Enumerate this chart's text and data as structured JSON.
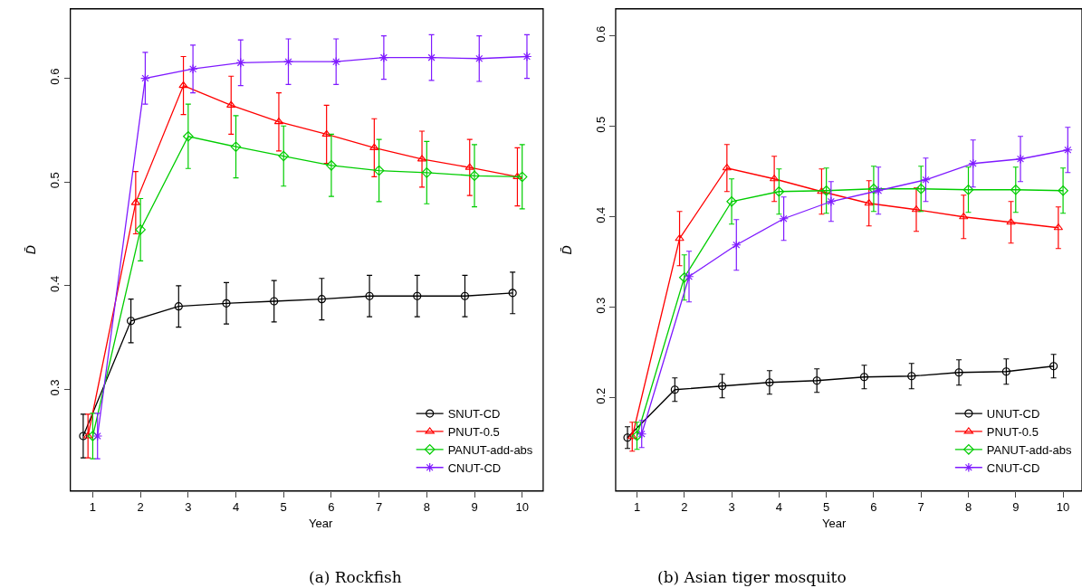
{
  "chart_data": [
    {
      "type": "line",
      "title": "(a) Rockfish",
      "xlabel": "Year",
      "ylabel": "D̄",
      "xlim": [
        0.53,
        10.44
      ],
      "ylim": [
        0.202,
        0.667
      ],
      "xticks": [
        1,
        2,
        3,
        4,
        5,
        6,
        7,
        8,
        9,
        10
      ],
      "yticks": [
        0.3,
        0.4,
        0.5,
        0.6
      ],
      "legend": "bottom right",
      "line_style": "solid",
      "series": [
        {
          "name": "SNUT-CD",
          "color": "#000000",
          "marker": "circle",
          "x": [
            0.8,
            1.8,
            2.8,
            3.8,
            4.8,
            5.8,
            6.8,
            7.8,
            8.8,
            9.8
          ],
          "values": [
            0.255,
            0.366,
            0.38,
            0.383,
            0.385,
            0.387,
            0.39,
            0.39,
            0.39,
            0.393
          ],
          "errors": [
            0.021,
            0.021,
            0.02,
            0.02,
            0.02,
            0.02,
            0.02,
            0.02,
            0.02,
            0.02
          ]
        },
        {
          "name": "PNUT-0.5",
          "color": "#ff0000",
          "marker": "triangle",
          "x": [
            0.9,
            1.9,
            2.9,
            3.9,
            4.9,
            5.9,
            6.9,
            7.9,
            8.9,
            9.9
          ],
          "values": [
            0.255,
            0.48,
            0.593,
            0.574,
            0.558,
            0.546,
            0.533,
            0.522,
            0.514,
            0.505
          ],
          "errors": [
            0.021,
            0.03,
            0.028,
            0.028,
            0.028,
            0.028,
            0.028,
            0.027,
            0.027,
            0.028
          ]
        },
        {
          "name": "PANUT-add-abs",
          "color": "#00cd00",
          "marker": "diamond",
          "x": [
            1.0,
            2.0,
            3.0,
            4.0,
            5.0,
            6.0,
            7.0,
            8.0,
            9.0,
            10.0
          ],
          "values": [
            0.255,
            0.454,
            0.544,
            0.534,
            0.525,
            0.516,
            0.511,
            0.509,
            0.506,
            0.505
          ],
          "errors": [
            0.022,
            0.03,
            0.031,
            0.03,
            0.029,
            0.03,
            0.03,
            0.03,
            0.03,
            0.031
          ]
        },
        {
          "name": "CNUT-CD",
          "color": "#7f1aff",
          "marker": "cross",
          "x": [
            1.1,
            2.1,
            3.1,
            4.1,
            5.1,
            6.1,
            7.1,
            8.1,
            9.1,
            10.1
          ],
          "values": [
            0.255,
            0.6,
            0.609,
            0.615,
            0.616,
            0.616,
            0.62,
            0.62,
            0.619,
            0.621
          ],
          "errors": [
            0.022,
            0.025,
            0.023,
            0.022,
            0.022,
            0.022,
            0.021,
            0.022,
            0.022,
            0.021
          ]
        }
      ]
    },
    {
      "type": "line",
      "title": "(b) Asian tiger mosquito",
      "xlabel": "Year",
      "ylabel": "D̄",
      "xlim": [
        0.55,
        10.4
      ],
      "ylim": [
        0.097,
        0.63
      ],
      "xticks": [
        1,
        2,
        3,
        4,
        5,
        6,
        7,
        8,
        9,
        10
      ],
      "yticks": [
        0.2,
        0.3,
        0.4,
        0.5,
        0.6
      ],
      "legend": "bottom right",
      "line_style": "solid",
      "series": [
        {
          "name": "UNUT-CD",
          "color": "#000000",
          "marker": "circle",
          "x": [
            0.8,
            1.8,
            2.8,
            3.8,
            4.8,
            5.8,
            6.8,
            7.8,
            8.8,
            9.8
          ],
          "values": [
            0.156,
            0.209,
            0.213,
            0.217,
            0.219,
            0.223,
            0.224,
            0.228,
            0.229,
            0.235
          ],
          "errors": [
            0.012,
            0.013,
            0.013,
            0.013,
            0.013,
            0.013,
            0.014,
            0.014,
            0.014,
            0.013
          ]
        },
        {
          "name": "PNUT-0.5",
          "color": "#ff0000",
          "marker": "triangle",
          "x": [
            0.9,
            1.9,
            2.9,
            3.9,
            4.9,
            5.9,
            6.9,
            7.9,
            8.9,
            9.9
          ],
          "values": [
            0.157,
            0.376,
            0.454,
            0.442,
            0.428,
            0.415,
            0.408,
            0.4,
            0.394,
            0.388
          ],
          "errors": [
            0.016,
            0.03,
            0.026,
            0.025,
            0.025,
            0.025,
            0.024,
            0.024,
            0.023,
            0.023
          ]
        },
        {
          "name": "PANUT-add-abs",
          "color": "#00cd00",
          "marker": "diamond",
          "x": [
            1.0,
            2.0,
            3.0,
            4.0,
            5.0,
            6.0,
            7.0,
            8.0,
            9.0,
            10.0
          ],
          "values": [
            0.158,
            0.333,
            0.417,
            0.428,
            0.429,
            0.431,
            0.431,
            0.43,
            0.43,
            0.429
          ],
          "errors": [
            0.015,
            0.025,
            0.025,
            0.025,
            0.025,
            0.025,
            0.025,
            0.025,
            0.025,
            0.025
          ]
        },
        {
          "name": "CNUT-CD",
          "color": "#7f1aff",
          "marker": "cross",
          "x": [
            1.1,
            2.1,
            3.1,
            4.1,
            5.1,
            6.1,
            7.1,
            8.1,
            9.1,
            10.1
          ],
          "values": [
            0.16,
            0.334,
            0.369,
            0.398,
            0.417,
            0.429,
            0.441,
            0.459,
            0.464,
            0.474
          ],
          "errors": [
            0.015,
            0.028,
            0.028,
            0.024,
            0.022,
            0.026,
            0.024,
            0.026,
            0.025,
            0.025
          ]
        }
      ]
    }
  ]
}
